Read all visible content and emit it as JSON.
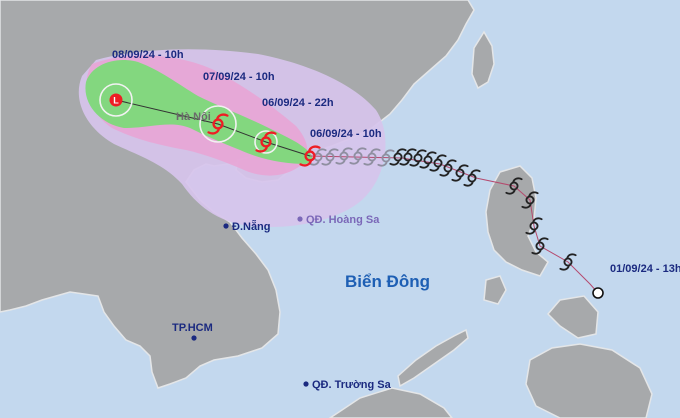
{
  "colors": {
    "sea": "#c3d8ee",
    "land": "#a7a9ab",
    "coast": "#e4e6e8",
    "cone_outer": "#d7c4ec",
    "cone_pink": "#e7a6d6",
    "cone_green": "#7dd97a",
    "storm_red": "#ee1d24",
    "track_past": "#9a9aaa",
    "label_blue": "#1b2a80",
    "sea_label": "#1e5fb4"
  },
  "track": {
    "labels": {
      "t1": "08/09/24 - 10h",
      "t2": "07/09/24 - 10h",
      "t3": "06/09/24 - 22h",
      "t4": "06/09/24 - 10h",
      "start": "01/09/24 - 13h"
    },
    "marker_icons": [
      "low-pressure-icon",
      "storm-icon",
      "storm-icon",
      "storm-icon"
    ],
    "low_pressure_symbol": "L"
  },
  "places": {
    "hanoi": "Hà Nội",
    "danang": "Đ.Nẵng",
    "hoangsa": "QĐ. Hoàng Sa",
    "hcm": "TP.HCM",
    "truongsa": "QĐ. Trường Sa"
  },
  "sea_name": "Biển Đông"
}
